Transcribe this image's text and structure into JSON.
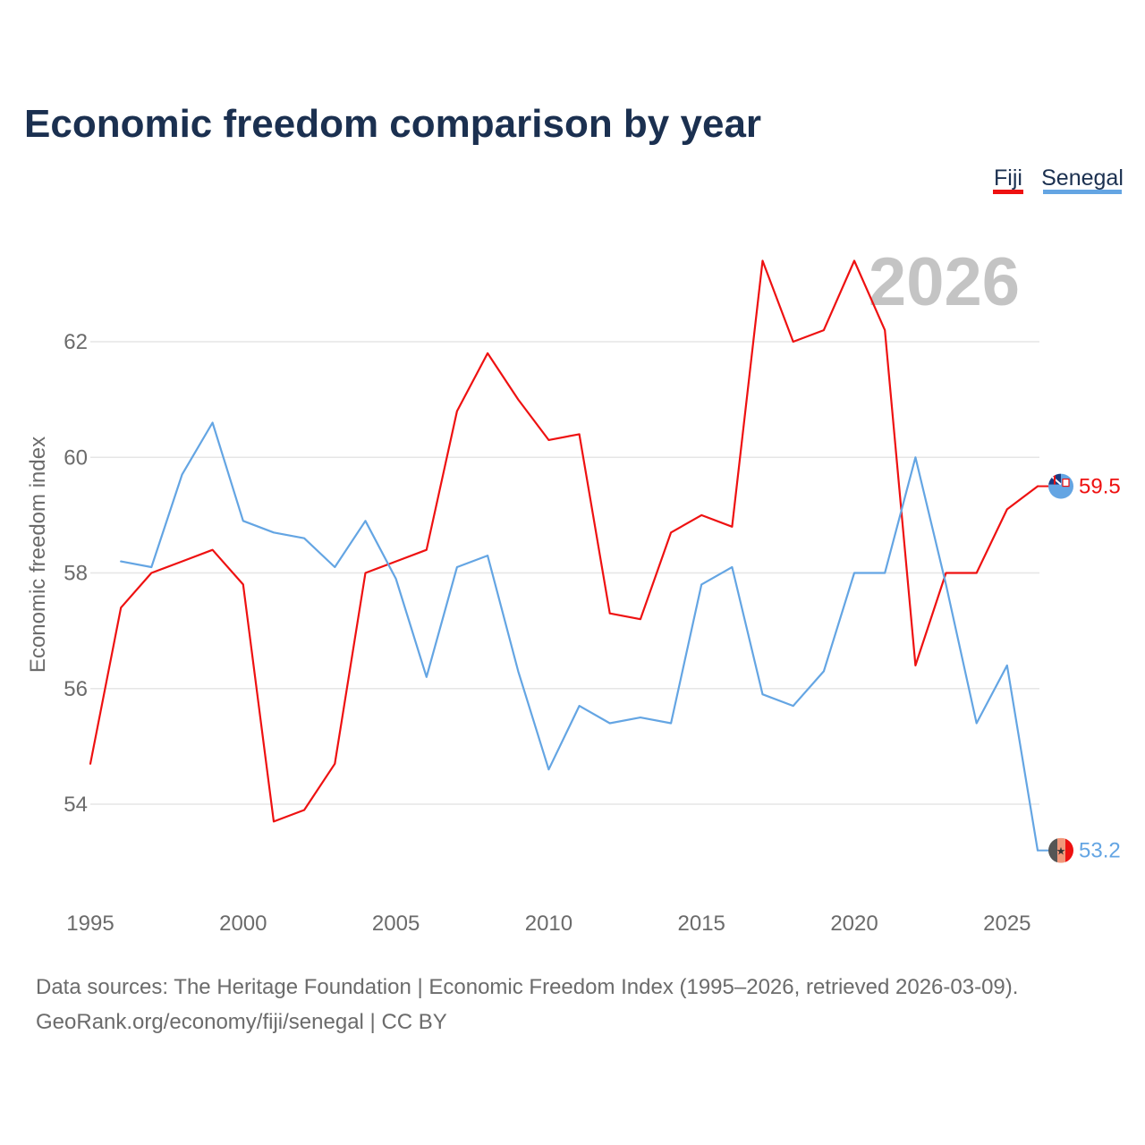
{
  "chart_data": {
    "type": "line",
    "title": "Economic freedom comparison by year",
    "xlabel": "",
    "ylabel": "Economic freedom index",
    "xlim": [
      1995,
      2026
    ],
    "ylim": [
      52.5,
      63.8
    ],
    "x_ticks": [
      1995,
      2000,
      2005,
      2010,
      2015,
      2020,
      2025
    ],
    "y_ticks": [
      54,
      56,
      58,
      60,
      62
    ],
    "grid": true,
    "legend_position": "top-right",
    "current_year": "2026",
    "series": [
      {
        "name": "Fiji",
        "color": "#ee1111",
        "flag_icon": "fiji-flag-icon",
        "end_label": "59.5",
        "x": [
          1995,
          1996,
          1997,
          1998,
          1999,
          2000,
          2001,
          2002,
          2003,
          2004,
          2005,
          2006,
          2007,
          2008,
          2009,
          2010,
          2011,
          2012,
          2013,
          2014,
          2015,
          2016,
          2017,
          2018,
          2019,
          2020,
          2021,
          2022,
          2023,
          2024,
          2025,
          2026
        ],
        "values": [
          54.7,
          57.4,
          58.0,
          58.2,
          58.4,
          57.8,
          53.7,
          53.9,
          54.7,
          58.0,
          58.2,
          58.4,
          60.8,
          61.8,
          61.0,
          60.3,
          60.4,
          57.3,
          57.2,
          58.7,
          59.0,
          58.8,
          63.4,
          62.0,
          62.2,
          63.4,
          62.2,
          56.4,
          58.0,
          58.0,
          59.1,
          59.5
        ]
      },
      {
        "name": "Senegal",
        "color": "#64a5e3",
        "flag_icon": "senegal-flag-icon",
        "end_label": "53.2",
        "x": [
          1996,
          1997,
          1998,
          1999,
          2000,
          2001,
          2002,
          2003,
          2004,
          2005,
          2006,
          2007,
          2008,
          2009,
          2010,
          2011,
          2012,
          2013,
          2014,
          2015,
          2016,
          2017,
          2018,
          2019,
          2020,
          2021,
          2022,
          2023,
          2024,
          2025,
          2026
        ],
        "values": [
          58.2,
          58.1,
          59.7,
          60.6,
          58.9,
          58.7,
          58.6,
          58.1,
          58.9,
          57.9,
          56.2,
          58.1,
          58.3,
          56.3,
          54.6,
          55.7,
          55.4,
          55.5,
          55.4,
          57.8,
          58.1,
          55.9,
          55.7,
          56.3,
          58.0,
          58.0,
          60.0,
          57.8,
          55.4,
          56.4,
          53.2
        ]
      }
    ]
  },
  "footer": {
    "source_line": "Data sources: The Heritage Foundation | Economic Freedom Index (1995–2026, retrieved 2026-03-09).",
    "credit_line": "GeoRank.org/economy/fiji/senegal | CC BY"
  }
}
